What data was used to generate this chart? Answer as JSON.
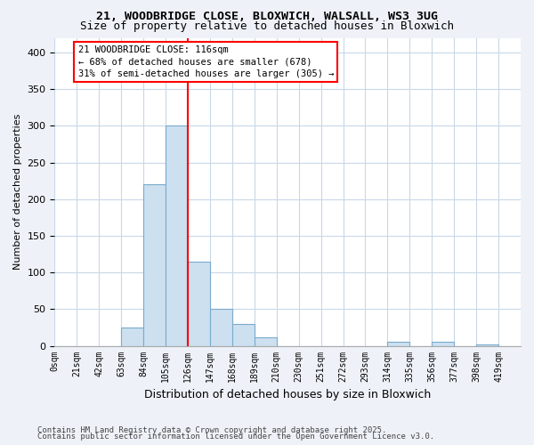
{
  "title1": "21, WOODBRIDGE CLOSE, BLOXWICH, WALSALL, WS3 3UG",
  "title2": "Size of property relative to detached houses in Bloxwich",
  "xlabel": "Distribution of detached houses by size in Bloxwich",
  "ylabel": "Number of detached properties",
  "footnote1": "Contains HM Land Registry data © Crown copyright and database right 2025.",
  "footnote2": "Contains public sector information licensed under the Open Government Licence v3.0.",
  "bin_labels": [
    "0sqm",
    "21sqm",
    "42sqm",
    "63sqm",
    "84sqm",
    "105sqm",
    "126sqm",
    "147sqm",
    "168sqm",
    "189sqm",
    "210sqm",
    "230sqm",
    "251sqm",
    "272sqm",
    "293sqm",
    "314sqm",
    "335sqm",
    "356sqm",
    "377sqm",
    "398sqm",
    "419sqm"
  ],
  "bar_heights": [
    0,
    0,
    0,
    25,
    220,
    300,
    115,
    50,
    30,
    12,
    0,
    0,
    0,
    0,
    0,
    5,
    0,
    5,
    0,
    2,
    0
  ],
  "bar_color": "#cce0f0",
  "bar_edge_color": "#7aabcc",
  "annotation_text": "21 WOODBRIDGE CLOSE: 116sqm\n← 68% of detached houses are smaller (678)\n31% of semi-detached houses are larger (305) →",
  "ylim": [
    0,
    420
  ],
  "yticks": [
    0,
    50,
    100,
    150,
    200,
    250,
    300,
    350,
    400
  ],
  "bg_color": "#eef2f8",
  "plot_bg_color": "#ffffff",
  "grid_color": "#c8d8e8",
  "red_line_bin": 6
}
